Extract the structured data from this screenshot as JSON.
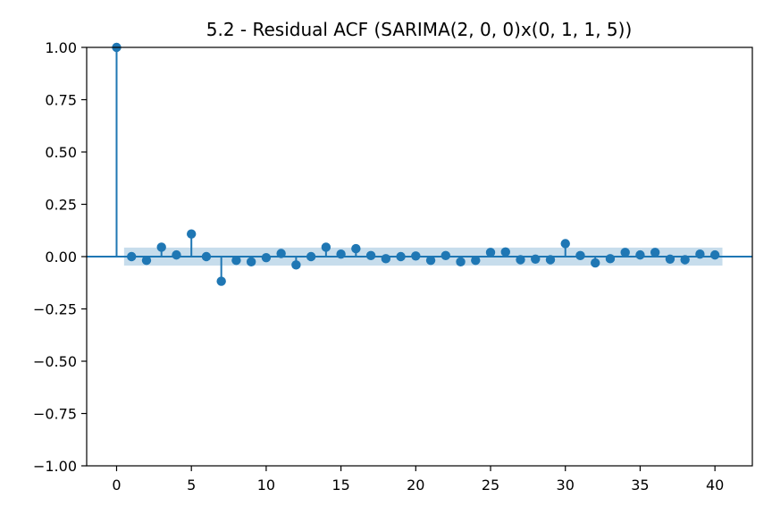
{
  "chart_data": {
    "type": "scatter",
    "subtype": "stem",
    "title": "5.2 - Residual ACF (SARIMA(2, 0, 0)x(0, 1, 1, 5))",
    "xlabel": "",
    "ylabel": "",
    "xlim": [
      -2,
      42.5
    ],
    "ylim": [
      -1.0,
      1.0
    ],
    "xticks": [
      0,
      5,
      10,
      15,
      20,
      25,
      30,
      35,
      40
    ],
    "xtick_labels": [
      "0",
      "5",
      "10",
      "15",
      "20",
      "25",
      "30",
      "35",
      "40"
    ],
    "yticks": [
      1.0,
      0.75,
      0.5,
      0.25,
      0.0,
      -0.25,
      -0.5,
      -0.75,
      -1.0
    ],
    "ytick_labels": [
      "1.00",
      "0.75",
      "0.50",
      "0.25",
      "0.00",
      "−0.25",
      "−0.50",
      "−0.75",
      "−1.00"
    ],
    "grid": false,
    "confidence_band": {
      "x_start": 0.5,
      "x_end": 40.5,
      "half_width": 0.043
    },
    "lags": [
      0,
      1,
      2,
      3,
      4,
      5,
      6,
      7,
      8,
      9,
      10,
      11,
      12,
      13,
      14,
      15,
      16,
      17,
      18,
      19,
      20,
      21,
      22,
      23,
      24,
      25,
      26,
      27,
      28,
      29,
      30,
      31,
      32,
      33,
      34,
      35,
      36,
      37,
      38,
      39,
      40
    ],
    "acf": [
      1.0,
      0.0,
      -0.018,
      0.045,
      0.008,
      0.108,
      0.0,
      -0.118,
      -0.018,
      -0.025,
      -0.005,
      0.015,
      -0.04,
      0.0,
      0.045,
      0.012,
      0.038,
      0.005,
      -0.01,
      0.0,
      0.003,
      -0.018,
      0.005,
      -0.025,
      -0.018,
      0.02,
      0.022,
      -0.015,
      -0.012,
      -0.015,
      0.062,
      0.005,
      -0.03,
      -0.01,
      0.02,
      0.008,
      0.02,
      -0.012,
      -0.015,
      0.012,
      0.008
    ],
    "colors": {
      "marker": "#1f77b4",
      "band": "#1f77b4"
    }
  }
}
